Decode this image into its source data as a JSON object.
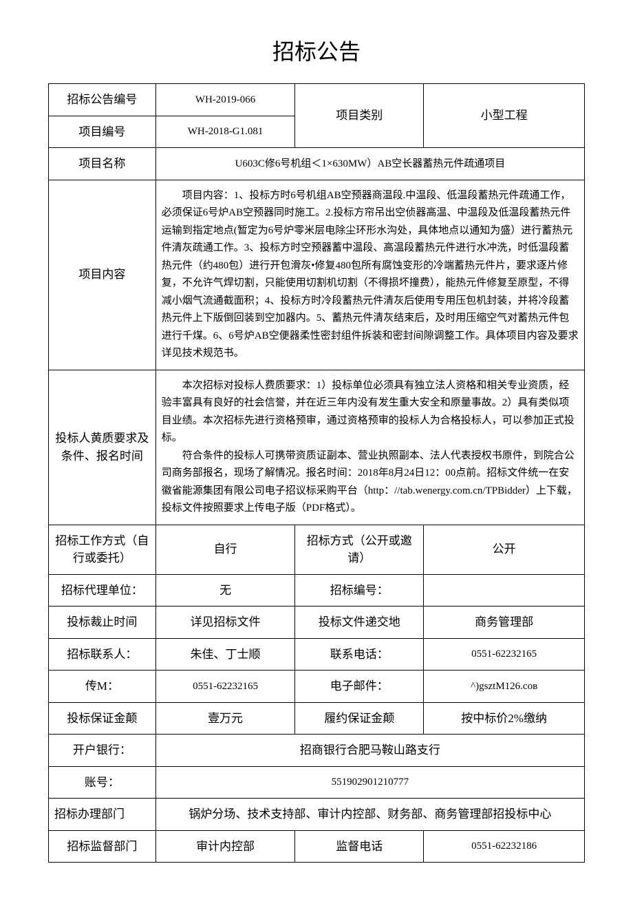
{
  "document": {
    "title": "招标公告",
    "font_family": "KaiTi",
    "title_fontsize": 32,
    "body_fontsize": 15,
    "label_fontsize": 17,
    "border_color": "#000000",
    "background_color": "#ffffff",
    "text_color": "#000000"
  },
  "labels": {
    "announcement_no": "招标公告编号",
    "project_no": "项目编号",
    "project_category": "项目类别",
    "project_name": "项目名称",
    "project_content": "项目内容",
    "bidder_requirements": "投标人黄质要求及条件、报名时间",
    "bidding_work_method": "招标工作方式（自行或委托）",
    "bidding_method": "招标方式（公开或邀请）",
    "bidding_agent": "招标代理单位：",
    "bidding_no": "招标编号：",
    "bid_deadline": "投标裁止时间",
    "bid_submission_location": "投标文件递交地",
    "contact_person": "招标联系人：",
    "contact_phone": "联系电话：",
    "fax": "传M：",
    "email": "电子邮件：",
    "bid_bond": "投标保证金颠",
    "performance_bond": "履约保证金颠",
    "bank": "开户银行：",
    "account_no": "账号：",
    "handling_dept": "招标办理部门",
    "supervision_dept": "招标监督部门",
    "supervision_phone": "监督电话"
  },
  "values": {
    "announcement_no": "WH-2019-066",
    "project_no": "WH-2018-G1.081",
    "project_category": "小型工程",
    "project_name": "U603C修6号机组＜1×630MW）AB空长器蓄热元件疏通项目",
    "project_content": "项目内容：1、投标方时6号机组AB空预器商温段.中温段、低温段蓄热元件疏通工作，必须保证6号炉AB空预器同时施工。2.投标方帘吊出空侦器高温、中温段及低温段蓄热元件运输到指定地点(暂定为6号炉零米层电除尘环形水沟处，具体地点以通知为盛）进行蓄热元件清灰疏通工作。3、投标方时空预器蓄中温段、高温段蓄热元件进行水冲洗，时低温段蓄热元件（约480包）进行开包滑灰•修复480包所有腐蚀变形的冷端蓄热元件片，要求逐片修复，不允许气焊切割，只能使用切割机切割（不得损坏撞费），能热元件修复至原型，不得减小烟气流通截面积；4、投标方时冷段蓄热元件清灰后使用专用压包机封装，并将冷段蓄热元件上下版倒回装到空加器内。5、蓄热元件清灰结束后，及时用压缩空气对蓄热元件包进行千煤。6、6号炉AB空便器柔性密封组件拆装和密封间隙调整工作。具体项目内容及要求详见技术规范书。",
    "bidder_requirements_p1": "本次招标对投标人费质要求：1）投标单位必须具有独立法人资格和相关专业资质，经验丰富具有良好的社会信誉，并在近三年内没有发生重大安全和原量事故。2）具有类似项目业绩。本次招标先进行资格预审，通过资格预审的投标人为合格投标人，可以参加正式投标。",
    "bidder_requirements_p2": "符合条件的投标人可携带资质证副本、营业执照副本、法人代表授权书原件，到院合公司商务部报名，现场了解情况。报名时间：2018年8月24日12：00点前。招标文件统一在安徽省能源集团有限公司电子招议标采购平台（http：//tab.wenergy.com.cn/TPBidder）上下载，投标文件按照要求上传电子版（PDF格式）。",
    "bidding_work_method": "自行",
    "bidding_method": "公开",
    "bidding_agent": "无",
    "bidding_no": "",
    "bid_deadline": "详见招标文件",
    "bid_submission_location": "商务管理部",
    "contact_person": "朱佳、丁士顺",
    "contact_phone": "0551-62232165",
    "fax": "0551-62232165",
    "email": "^)gsztM126.coв",
    "bid_bond": "壹万元",
    "performance_bond": "按中标价2%缴纳",
    "bank": "招商银行合肥马鞍山路支行",
    "account_no": "551902901210777",
    "handling_dept": "锅炉分场、技术支持部、审计内控部、财务部、商务管理部招投标中心",
    "supervision_dept": "审计内控部",
    "supervision_phone": "0551-62232186"
  }
}
